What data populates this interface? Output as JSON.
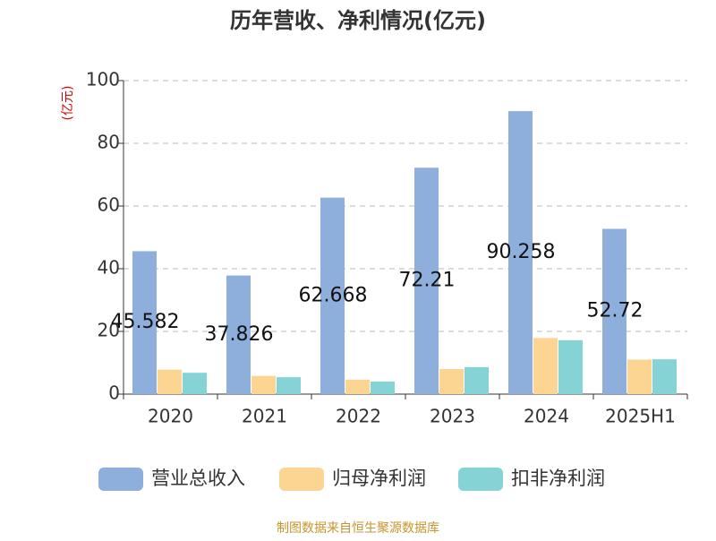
{
  "chart_data": {
    "type": "bar",
    "title": "历年营收、净利情况(亿元)",
    "y_label": "(亿元)",
    "categories": [
      "2020",
      "2021",
      "2022",
      "2023",
      "2024",
      "2025H1"
    ],
    "series": [
      {
        "name": "营业总收入",
        "color": "#8eaedb",
        "values": [
          45.582,
          37.826,
          62.668,
          72.21,
          90.258,
          52.72
        ],
        "show_labels": true
      },
      {
        "name": "归母净利润",
        "color": "#fdd593",
        "values": [
          7.8,
          5.8,
          4.6,
          8.0,
          17.9,
          11.0
        ]
      },
      {
        "name": "扣非净利润",
        "color": "#86d3d6",
        "values": [
          6.8,
          5.4,
          4.0,
          8.6,
          17.2,
          11.1
        ]
      }
    ],
    "ylim": [
      0,
      100
    ],
    "yticks": [
      0,
      20,
      40,
      60,
      80,
      100
    ],
    "grid": true,
    "source": "制图数据来自恒生聚源数据库"
  }
}
